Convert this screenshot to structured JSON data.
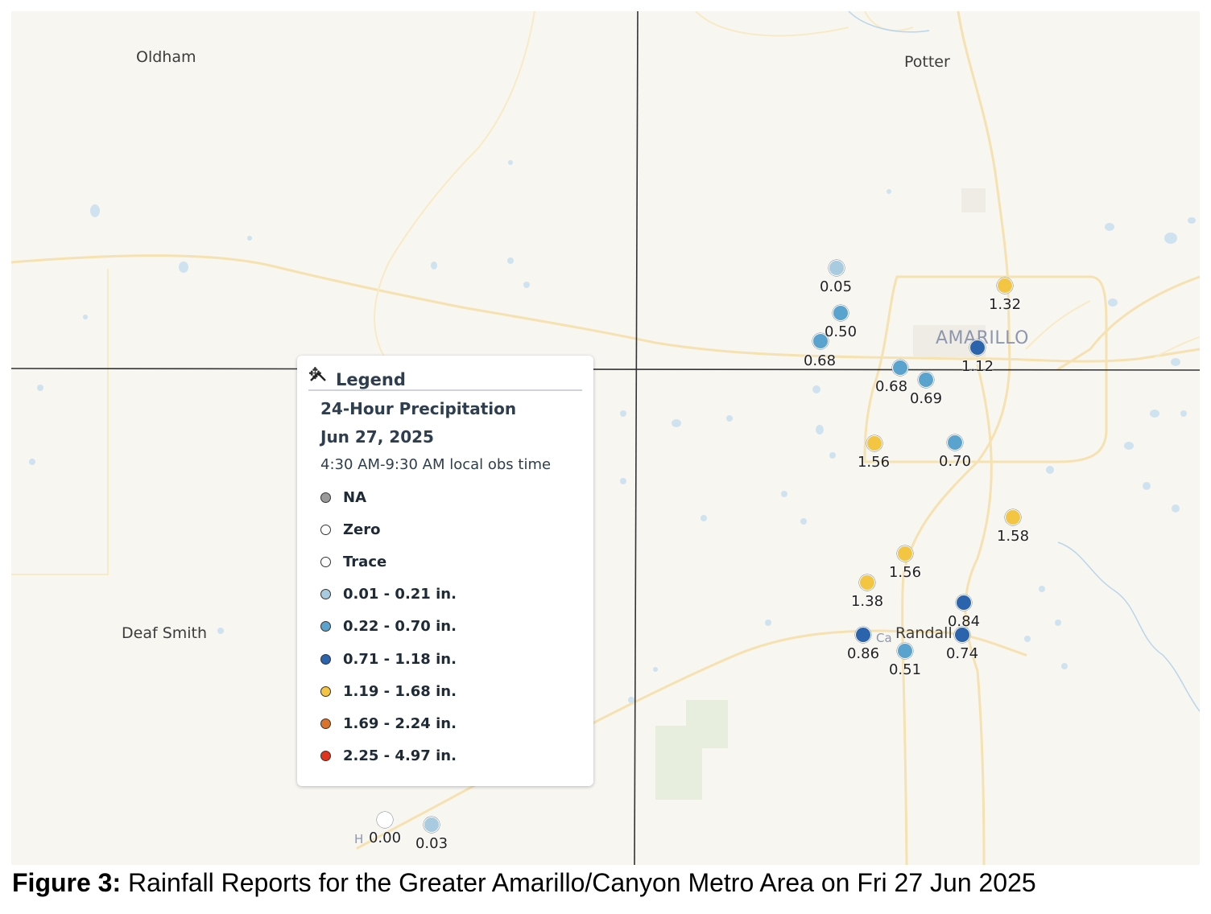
{
  "map": {
    "county_labels": [
      "Oldham",
      "Potter",
      "Deaf Smith",
      "Randall"
    ],
    "city_label": "AMARILLO",
    "partial_labels": [
      "Ca",
      "H"
    ]
  },
  "legend": {
    "title": "Legend",
    "product": "24-Hour Precipitation",
    "date": "Jun 27, 2025",
    "obs_time": "4:30 AM-9:30 AM local obs time",
    "items": [
      {
        "label": "NA",
        "color": "#9a9a9a"
      },
      {
        "label": "Zero",
        "color": "#ffffff"
      },
      {
        "label": "Trace",
        "color": "#ffffff"
      },
      {
        "label": "0.01 - 0.21 in.",
        "color": "#a9cbe0"
      },
      {
        "label": "0.22 - 0.70 in.",
        "color": "#5ba3cf"
      },
      {
        "label": "0.71 - 1.18 in.",
        "color": "#2b63ad"
      },
      {
        "label": "1.19 - 1.68 in.",
        "color": "#f4c542"
      },
      {
        "label": "1.69 - 2.24 in.",
        "color": "#d9742a"
      },
      {
        "label": "2.25 - 4.97 in.",
        "color": "#e0321c"
      }
    ]
  },
  "stations": [
    {
      "value": "0.05",
      "bin": 3
    },
    {
      "value": "0.50",
      "bin": 4
    },
    {
      "value": "0.68",
      "bin": 4
    },
    {
      "value": "1.32",
      "bin": 6
    },
    {
      "value": "1.12",
      "bin": 5
    },
    {
      "value": "0.68",
      "bin": 4
    },
    {
      "value": "0.69",
      "bin": 4
    },
    {
      "value": "1.56",
      "bin": 6
    },
    {
      "value": "0.70",
      "bin": 4
    },
    {
      "value": "1.58",
      "bin": 6
    },
    {
      "value": "1.56",
      "bin": 6
    },
    {
      "value": "1.38",
      "bin": 6
    },
    {
      "value": "0.84",
      "bin": 5
    },
    {
      "value": "0.86",
      "bin": 5
    },
    {
      "value": "0.51",
      "bin": 4
    },
    {
      "value": "0.74",
      "bin": 5
    },
    {
      "value": "0.00",
      "bin": 1
    },
    {
      "value": "0.03",
      "bin": 3
    }
  ],
  "caption": {
    "label": "Figure 3:",
    "text": "Rainfall Reports for the Greater Amarillo/Canyon Metro Area on Fri 27 Jun 2025"
  }
}
